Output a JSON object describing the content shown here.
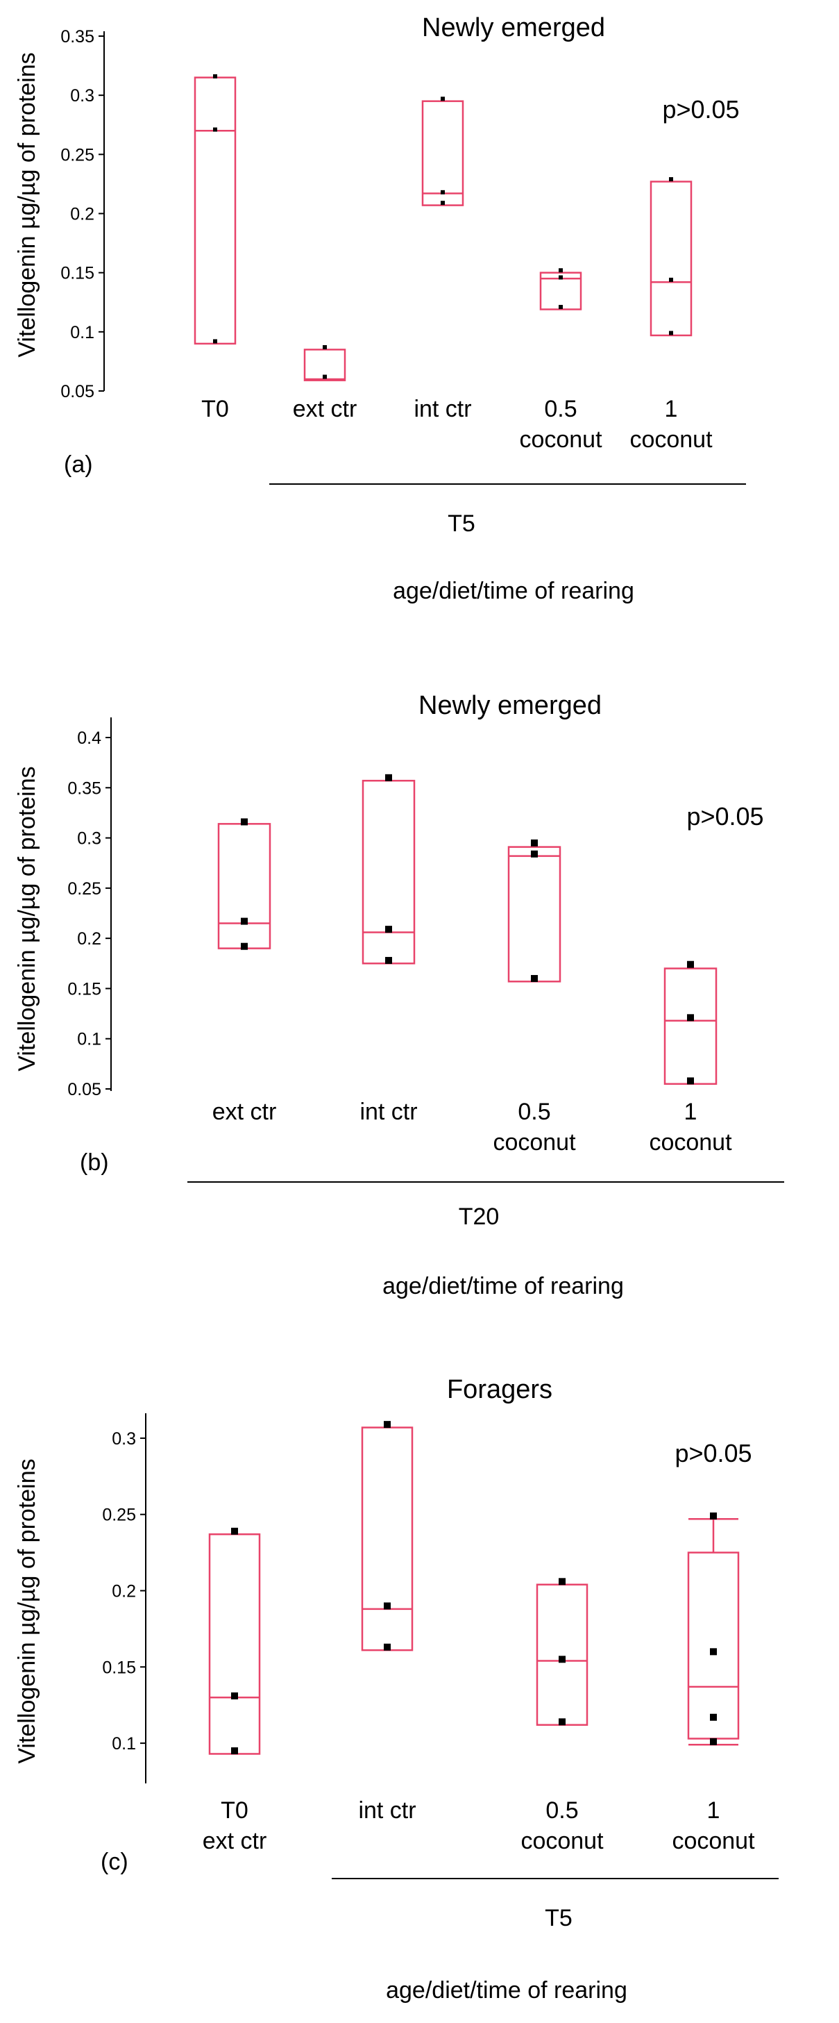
{
  "chart_data": [
    {
      "type": "box",
      "panel_label": "(a)",
      "title": "Newly emerged",
      "ylabel": "Vitellogenin µg/µg of proteins",
      "xlabel": "age/diet/time of rearing",
      "annotation": "p>0.05",
      "ylim": [
        0.05,
        0.35
      ],
      "yticks": [
        "0.05",
        "0.1",
        "0.15",
        "0.2",
        "0.25",
        "0.3",
        "0.35"
      ],
      "group_label": "T5",
      "categories": [
        {
          "lines": [
            "T0"
          ],
          "min": 0.09,
          "median": 0.27,
          "max": 0.315,
          "points": [
            0.316,
            0.271,
            0.092
          ]
        },
        {
          "lines": [
            "ext ctr"
          ],
          "min": 0.059,
          "median": 0.06,
          "max": 0.085,
          "points": [
            0.087,
            0.062
          ]
        },
        {
          "lines": [
            "int ctr"
          ],
          "min": 0.207,
          "median": 0.217,
          "max": 0.295,
          "points": [
            0.297,
            0.218,
            0.209
          ]
        },
        {
          "lines": [
            "0.5",
            "coconut"
          ],
          "min": 0.119,
          "median": 0.145,
          "max": 0.15,
          "points": [
            0.152,
            0.146,
            0.121
          ]
        },
        {
          "lines": [
            "1",
            "coconut"
          ],
          "min": 0.097,
          "median": 0.142,
          "max": 0.227,
          "points": [
            0.229,
            0.144,
            0.099
          ]
        }
      ]
    },
    {
      "type": "box",
      "panel_label": "(b)",
      "title": "Newly emerged",
      "ylabel": "Vitellogenin µg/µg of proteins",
      "xlabel": "age/diet/time of rearing",
      "annotation": "p>0.05",
      "ylim": [
        0.05,
        0.4
      ],
      "yticks": [
        "0.05",
        "0.1",
        "0.15",
        "0.2",
        "0.25",
        "0.3",
        "0.35",
        "0.4"
      ],
      "group_label": "T20",
      "categories": [
        {
          "lines": [
            "ext ctr"
          ],
          "min": 0.19,
          "median": 0.215,
          "max": 0.314,
          "points": [
            0.316,
            0.217,
            0.192
          ]
        },
        {
          "lines": [
            "int ctr"
          ],
          "min": 0.175,
          "median": 0.206,
          "max": 0.357,
          "points": [
            0.36,
            0.209,
            0.178
          ]
        },
        {
          "lines": [
            "0.5",
            "coconut"
          ],
          "min": 0.157,
          "median": 0.282,
          "max": 0.291,
          "points": [
            0.295,
            0.284,
            0.16
          ]
        },
        {
          "lines": [
            "1",
            "coconut"
          ],
          "min": 0.055,
          "median": 0.118,
          "max": 0.17,
          "points": [
            0.174,
            0.121,
            0.058
          ]
        }
      ]
    },
    {
      "type": "box",
      "panel_label": "(c)",
      "title": "Foragers",
      "ylabel": "Vitellogenin µg/µg of proteins",
      "xlabel": "age/diet/time of rearing",
      "annotation": "p>0.05",
      "ylim": [
        0.075,
        0.325
      ],
      "yticks": [
        "0.1",
        "0.15",
        "0.2",
        "0.25",
        "0.3"
      ],
      "group_label": "T5",
      "categories": [
        {
          "lines": [
            "T0",
            "ext ctr"
          ],
          "min": 0.093,
          "median": 0.13,
          "max": 0.237,
          "points": [
            0.239,
            0.131,
            0.095
          ]
        },
        {
          "lines": [
            "int ctr"
          ],
          "min": 0.161,
          "median": 0.188,
          "max": 0.307,
          "points": [
            0.309,
            0.19,
            0.163
          ]
        },
        {
          "lines": [
            "0.5",
            "coconut"
          ],
          "min": 0.112,
          "median": 0.154,
          "max": 0.204,
          "points": [
            0.206,
            0.155,
            0.114
          ]
        },
        {
          "lines": [
            "1",
            "coconut"
          ],
          "min": 0.103,
          "median": 0.137,
          "max": 0.225,
          "whisker_low": 0.099,
          "whisker_high": 0.247,
          "points": [
            0.249,
            0.16,
            0.117,
            0.101
          ]
        }
      ]
    }
  ]
}
